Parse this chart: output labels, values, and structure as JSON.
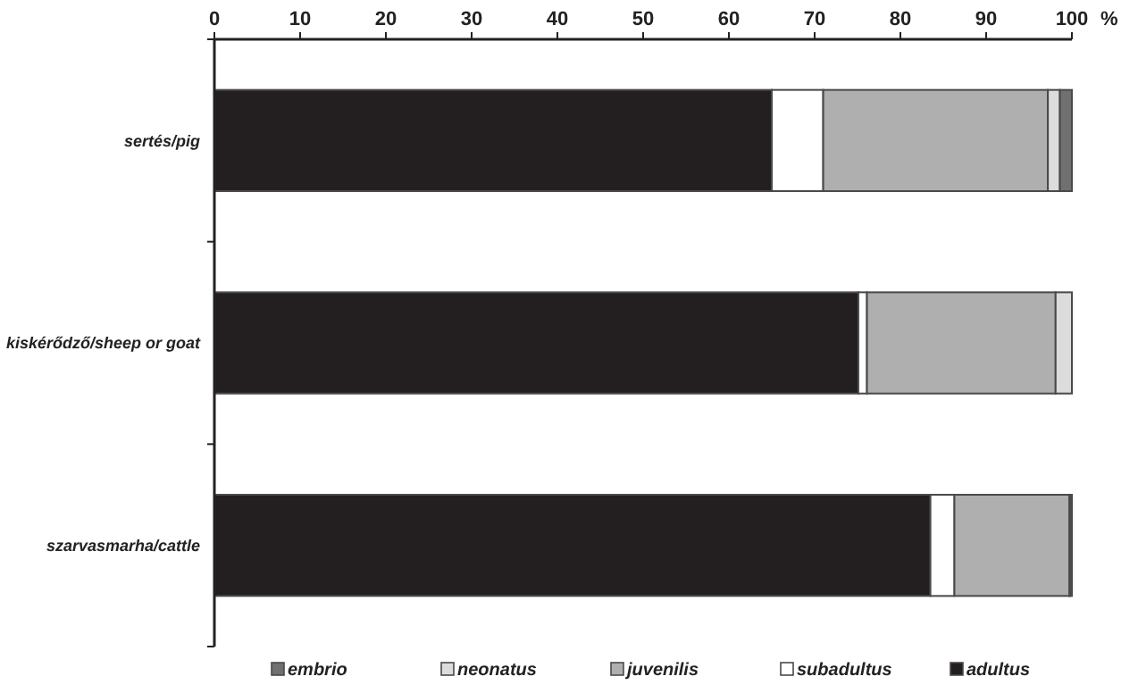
{
  "chart_data": {
    "type": "bar",
    "orientation": "horizontal",
    "stacked": true,
    "xlabel": "%",
    "categories": [
      "sertés/pig",
      "kiskérődző/sheep or goat",
      "szarvasmarha/cattle"
    ],
    "series": [
      {
        "name": "adultus",
        "color": "#231f20",
        "values": [
          65,
          75.1,
          83.5
        ]
      },
      {
        "name": "subadultus",
        "color": "#ffffff",
        "values": [
          6,
          1,
          2.8
        ]
      },
      {
        "name": "juvenilis",
        "color": "#afafaf",
        "values": [
          26.2,
          22,
          13.4
        ]
      },
      {
        "name": "neonatus",
        "color": "#dcdcdc",
        "values": [
          1.4,
          1.9,
          0.1
        ]
      },
      {
        "name": "embrio",
        "color": "#707070",
        "values": [
          1.4,
          0,
          0.2
        ]
      }
    ],
    "xlim": [
      0,
      100
    ],
    "xticks": [
      0,
      10,
      20,
      30,
      40,
      50,
      60,
      70,
      80,
      90,
      100
    ],
    "grid": false,
    "legend": "bottom"
  }
}
